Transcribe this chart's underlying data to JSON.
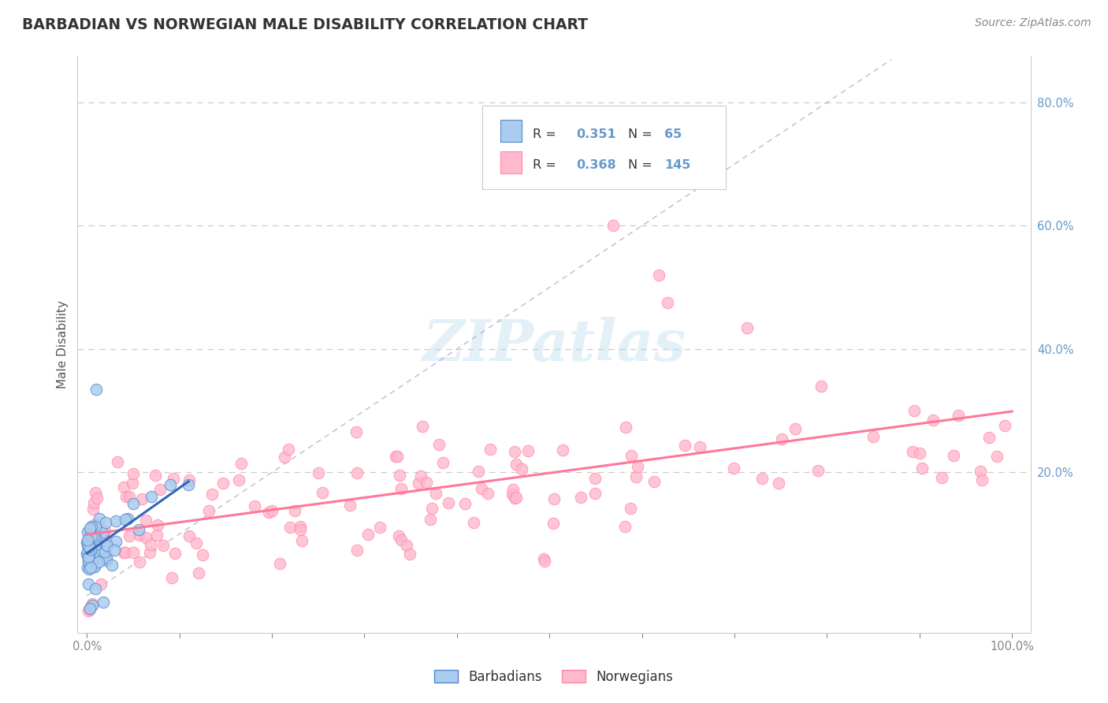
{
  "title": "BARBADIAN VS NORWEGIAN MALE DISABILITY CORRELATION CHART",
  "source": "Source: ZipAtlas.com",
  "ylabel": "Male Disability",
  "x_tick_labels": [
    "0.0%",
    "",
    "",
    "",
    "",
    "",
    "",
    "",
    "",
    "",
    "100.0%"
  ],
  "y_tick_labels_right": [
    "20.0%",
    "40.0%",
    "60.0%",
    "80.0%"
  ],
  "barbadian_color": "#aaccee",
  "barbadian_edge": "#5588cc",
  "norwegian_color": "#ffb8cc",
  "norwegian_edge": "#ff88aa",
  "barbadian_line_color": "#3366bb",
  "norwegian_line_color": "#ff7799",
  "diag_line_color": "#aaaacc",
  "R_barbadian": 0.351,
  "N_barbadian": 65,
  "R_norwegian": 0.368,
  "N_norwegian": 145,
  "legend_label_barbadian": "Barbadians",
  "legend_label_norwegian": "Norwegians",
  "watermark": "ZIPatlas",
  "title_color": "#333333",
  "source_color": "#888888",
  "tick_color": "#888888",
  "right_tick_color": "#6699cc"
}
